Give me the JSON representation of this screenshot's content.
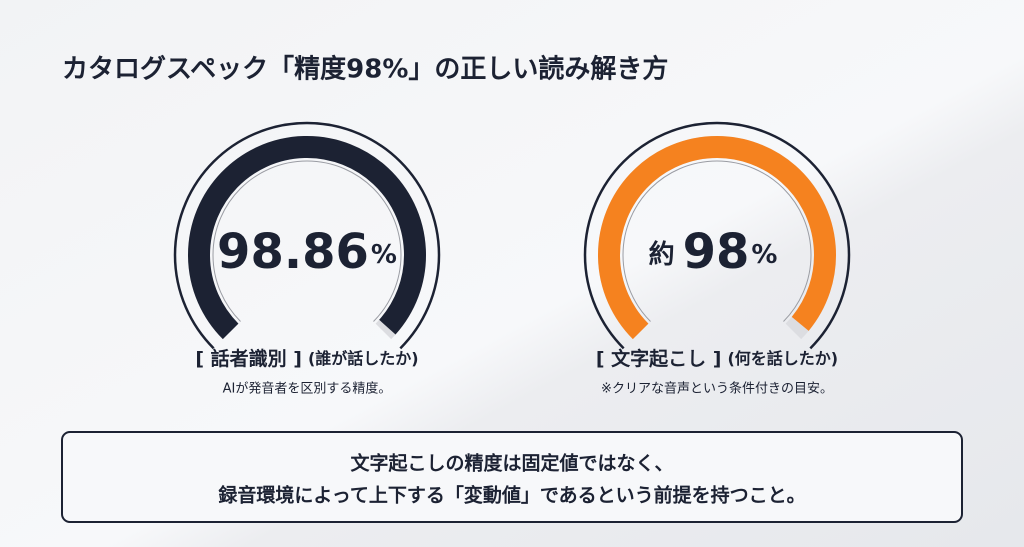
{
  "title": "カタログスペック「精度98%」の正しい読み解き方",
  "gauges": [
    {
      "prefix": null,
      "value": 98.86,
      "unit": "%",
      "ylim": [
        0,
        100
      ],
      "color": "#1c2233",
      "label": "[ 話者識別 ]",
      "sublabel": "(誰が話したか)",
      "note": "AIが発音者を区別する精度。"
    },
    {
      "prefix": "約",
      "value": 98,
      "unit": "%",
      "ylim": [
        0,
        100
      ],
      "color": "#f5821f",
      "label": "[ 文字起こし ]",
      "sublabel": "(何を話したか)",
      "note": "※クリアな音声という条件付きの目安。"
    }
  ],
  "message": {
    "lines": [
      "文字起こしの精度は固定値ではなく、",
      "録音環境によって上下する「変動値」であるという前提を持つこと。"
    ]
  }
}
